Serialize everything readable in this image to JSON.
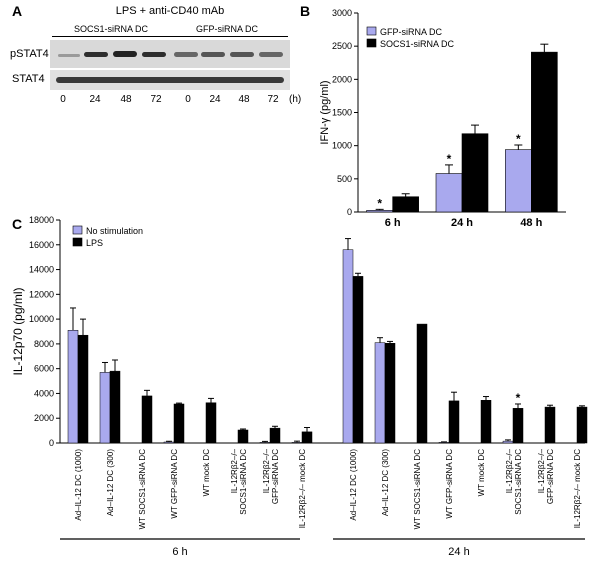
{
  "panel_a": {
    "letter": "A",
    "title": "LPS + anti-CD40 mAb",
    "groups": [
      "SOCS1-siRNA DC",
      "GFP-siRNA DC"
    ],
    "row_labels": [
      "pSTAT4",
      "STAT4"
    ],
    "lanes": [
      "0",
      "24",
      "48",
      "72",
      "0",
      "24",
      "48",
      "72"
    ],
    "unit": "(h)",
    "band_colors": {
      "gel_background": "#d8d8d8",
      "band": "#303030"
    }
  },
  "panel_b_letter": "B",
  "panel_c_letter": "C",
  "panel_c_groups": [
    "6 h",
    "24 h"
  ],
  "chart_data": [
    {
      "type": "bar",
      "panel": "B",
      "categories": [
        "6 h",
        "24 h",
        "48 h"
      ],
      "series": [
        {
          "name": "GFP-siRNA DC",
          "color": "#a9a9ee",
          "values": [
            25,
            580,
            940
          ],
          "errors": [
            15,
            130,
            70
          ]
        },
        {
          "name": "SOCS1-siRNA DC",
          "color": "#000000",
          "values": [
            230,
            1180,
            2410
          ],
          "errors": [
            45,
            130,
            120
          ]
        }
      ],
      "significance": [
        "*",
        "*",
        "*"
      ],
      "ylabel": "IFN-γ (pg/ml)",
      "ylim": [
        0,
        3000
      ],
      "yticks": [
        "0",
        "500",
        "1000",
        "1500",
        "2000",
        "2500",
        "3000"
      ],
      "legend": "top-left"
    },
    {
      "type": "bar",
      "panel": "C",
      "categories": [
        "Ad–IL-12 DC (1000)",
        "Ad–IL-12 DC (300)",
        "WT SOCS1-siRNA DC",
        "WT GFP-siRNA DC",
        "WT mock DC",
        "IL-12Rβ2–/– SOCS1-siRNA DC",
        "IL-12Rβ2–/– GFP-siRNA DC",
        "IL-12Rβ2–/– mock DC",
        "Ad–IL-12 DC (1000)",
        "Ad–IL-12 DC (300)",
        "WT SOCS1-siRNA DC",
        "WT GFP-siRNA DC",
        "WT mock DC",
        "IL-12Rβ2–/– SOCS1-siRNA DC",
        "IL-12Rβ2–/– GFP-siRNA DC",
        "IL-12Rβ2–/– mock DC"
      ],
      "category_lines": [
        [
          "Ad–IL-12 DC (1000)"
        ],
        [
          "Ad–IL-12 DC (300)"
        ],
        [
          "WT SOCS1-siRNA DC"
        ],
        [
          "WT GFP-siRNA DC"
        ],
        [
          "WT mock DC"
        ],
        [
          "IL-12Rβ2–/–",
          "SOCS1-siRNA DC"
        ],
        [
          "IL-12Rβ2–/–",
          "GFP-siRNA DC"
        ],
        [
          "IL-12Rβ2–/– mock DC"
        ],
        [
          "Ad–IL-12 DC (1000)"
        ],
        [
          "Ad–IL-12 DC (300)"
        ],
        [
          "WT SOCS1-siRNA DC"
        ],
        [
          "WT GFP-siRNA DC"
        ],
        [
          "WT mock DC"
        ],
        [
          "IL-12Rβ2–/–",
          "SOCS1-siRNA DC"
        ],
        [
          "IL-12Rβ2–/–",
          "GFP-siRNA DC"
        ],
        [
          "IL-12Rβ2–/– mock DC"
        ]
      ],
      "series": [
        {
          "name": "No stimulation",
          "color": "#a9a9ee",
          "values": [
            9100,
            5700,
            0,
            80,
            0,
            0,
            50,
            50,
            15600,
            8100,
            0,
            50,
            0,
            150,
            0,
            0
          ],
          "errors": [
            1800,
            800,
            0,
            60,
            0,
            0,
            80,
            100,
            900,
            400,
            0,
            40,
            0,
            100,
            0,
            0
          ]
        },
        {
          "name": "LPS",
          "color": "#000000",
          "values": [
            8700,
            5800,
            3800,
            3150,
            3250,
            1050,
            1200,
            900,
            13450,
            8050,
            9600,
            3400,
            3450,
            2800,
            2900,
            2900
          ],
          "errors": [
            1300,
            900,
            450,
            70,
            350,
            80,
            150,
            350,
            250,
            150,
            0,
            700,
            300,
            350,
            150,
            100
          ]
        }
      ],
      "significance_index": 13,
      "significance": "*",
      "ylabel": "IL-12p70 (pg/ml)",
      "ylim": [
        0,
        18000
      ],
      "yticks": [
        "0",
        "2000",
        "4000",
        "6000",
        "8000",
        "10000",
        "12000",
        "14000",
        "16000",
        "18000"
      ],
      "legend": "top-left",
      "groups": [
        "6 h",
        "24 h"
      ]
    }
  ]
}
